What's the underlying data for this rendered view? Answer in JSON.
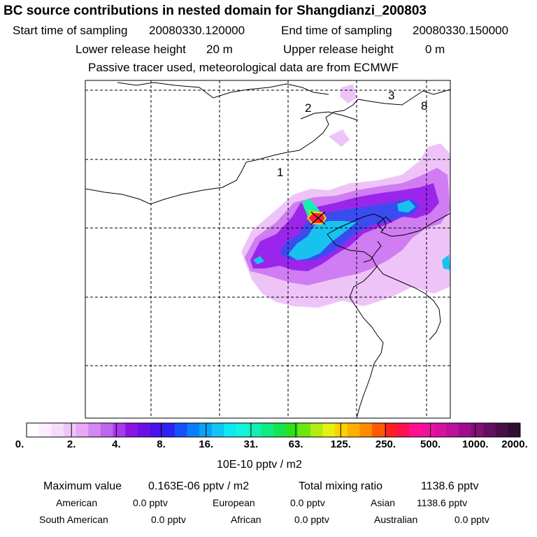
{
  "title": "BC  source contributions in nested domain for Shangdianzi_200803",
  "header": {
    "start_label": "Start time of sampling",
    "start_value": "20080330.120000",
    "end_label": "End time of sampling",
    "end_value": "20080330.150000",
    "lower_label": "Lower release height",
    "lower_value": "20 m",
    "upper_label": "Upper release height",
    "upper_value": "0 m",
    "tracer_note": "Passive tracer used, meteorological data are from ECMWF"
  },
  "map": {
    "region_labels": [
      "1",
      "2",
      "3",
      "8"
    ],
    "colors": {
      "frame": "#000000",
      "grid": "#000000",
      "coast": "#000000"
    }
  },
  "chart_data": {
    "type": "heatmap",
    "title": "BC  source contributions in nested domain for Shangdianzi_200803",
    "colorbar": {
      "ticks": [
        "0.",
        "2.",
        "4.",
        "8.",
        "16.",
        "31.",
        "63.",
        "125.",
        "250.",
        "500.",
        "1000.",
        "2000."
      ],
      "unit_label": "10E-10 pptv / m2",
      "colors": [
        "#ffffff",
        "#fbeefe",
        "#f6dcfb",
        "#f0c5f8",
        "#e8a8f5",
        "#d486f2",
        "#bf64ee",
        "#a838ea",
        "#8a14e4",
        "#6a10e6",
        "#4a12ec",
        "#2c22f2",
        "#1452f8",
        "#0a7ef8",
        "#0aa4f6",
        "#10c6f4",
        "#10e8f0",
        "#10f4dc",
        "#10f0b4",
        "#10ea84",
        "#14e450",
        "#30e018",
        "#70e610",
        "#b2ec10",
        "#e8f010",
        "#ffd000",
        "#ffb000",
        "#ff8a00",
        "#ff5a00",
        "#ff2020",
        "#ff1050",
        "#ff1090",
        "#f010a0",
        "#d810a0",
        "#bc10a0",
        "#a00c8c",
        "#821076",
        "#62105e",
        "#481048",
        "#301030"
      ]
    },
    "plume_levels": [
      {
        "level": "2-4",
        "color": "#e6a8f5"
      },
      {
        "level": "4-8",
        "color": "#b23cf0"
      },
      {
        "level": "8-16",
        "color": "#7a18e8"
      },
      {
        "level": "16-31",
        "color": "#2a48ee"
      },
      {
        "level": "31-63",
        "color": "#16c4f0"
      },
      {
        "level": "63-125",
        "color": "#18ecb0"
      },
      {
        "level": "125-250",
        "color": "#86e810"
      },
      {
        "level": "peak",
        "color": "#ff2040"
      }
    ],
    "maximum_value": "0.163E-06 pptv / m2",
    "total_mixing_ratio": "1138.6 pptv"
  },
  "footer": {
    "max_label": "Maximum value",
    "max_value": "0.163E-06 pptv / m2",
    "total_label": "Total mixing ratio",
    "total_value": "1138.6 pptv",
    "sources": [
      {
        "name": "American",
        "value": "0.0 pptv"
      },
      {
        "name": "European",
        "value": "0.0 pptv"
      },
      {
        "name": "Asian",
        "value": "1138.6 pptv"
      },
      {
        "name": "South American",
        "value": "0.0 pptv"
      },
      {
        "name": "African",
        "value": "0.0 pptv"
      },
      {
        "name": "Australian",
        "value": "0.0 pptv"
      }
    ]
  }
}
